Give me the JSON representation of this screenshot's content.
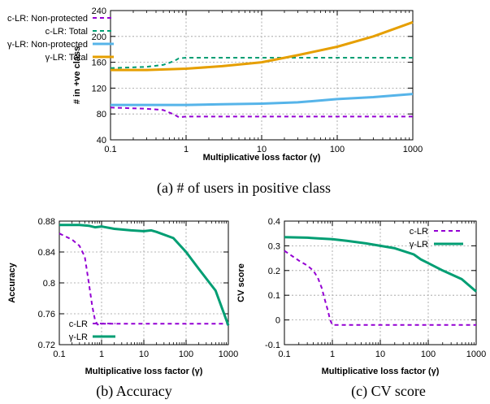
{
  "colors": {
    "purple": "#9400d3",
    "green": "#009e73",
    "blue": "#56b4e9",
    "orange": "#e69f00",
    "grid": "#9a9a9a"
  },
  "chart_data": [
    {
      "type": "line",
      "caption": "(a) # of users in positive class",
      "xlabel": "Multiplicative loss factor (γ)",
      "ylabel": "# in +ve class",
      "xscale": "log",
      "xlim": [
        0.1,
        1000
      ],
      "ylim": [
        40,
        240
      ],
      "xticks": [
        0.1,
        1,
        10,
        100,
        1000
      ],
      "xtick_labels": [
        "0.1",
        "1",
        "10",
        "100",
        "1000"
      ],
      "yticks": [
        40,
        80,
        120,
        160,
        200,
        240
      ],
      "ytick_labels": [
        "40",
        "80",
        "120",
        "160",
        "200",
        "240"
      ],
      "grid": true,
      "legend_position": "top-left",
      "series": [
        {
          "name": "c-LR: Non-protected",
          "color": "purple",
          "dash": "dashed",
          "x": [
            0.1,
            0.3,
            0.5,
            0.7,
            0.8,
            1,
            10,
            100,
            1000
          ],
          "y": [
            90,
            88,
            86,
            79,
            75,
            76,
            76,
            76,
            76
          ]
        },
        {
          "name": "c-LR: Total",
          "color": "green",
          "dash": "dashed",
          "x": [
            0.1,
            0.3,
            0.5,
            0.7,
            0.8,
            1,
            10,
            100,
            1000
          ],
          "y": [
            151,
            153,
            156,
            162,
            166,
            167,
            167,
            167,
            167
          ]
        },
        {
          "name": "γ-LR: Non-protected",
          "color": "blue",
          "dash": "solid",
          "x": [
            0.1,
            1,
            3,
            10,
            30,
            100,
            300,
            1000
          ],
          "y": [
            94,
            94,
            95,
            96,
            98,
            103,
            106,
            111
          ]
        },
        {
          "name": "γ-LR: Total",
          "color": "orange",
          "dash": "solid",
          "x": [
            0.1,
            0.3,
            1,
            3,
            10,
            30,
            100,
            300,
            1000
          ],
          "y": [
            148,
            148,
            150,
            154,
            160,
            171,
            184,
            200,
            222
          ]
        }
      ]
    },
    {
      "type": "line",
      "caption": "(b) Accuracy",
      "xlabel": "Multiplicative loss factor (γ)",
      "ylabel": "Accuracy",
      "xscale": "log",
      "xlim": [
        0.1,
        1000
      ],
      "ylim": [
        0.72,
        0.88
      ],
      "xticks": [
        0.1,
        1,
        10,
        100,
        1000
      ],
      "xtick_labels": [
        "0.1",
        "1",
        "10",
        "100",
        "1000"
      ],
      "yticks": [
        0.72,
        0.76,
        0.8,
        0.84,
        0.88
      ],
      "ytick_labels": [
        "0.72",
        "0.76",
        "0.8",
        "0.84",
        "0.88"
      ],
      "grid": true,
      "legend_position": "bottom-left",
      "series": [
        {
          "name": "c-LR",
          "color": "purple",
          "dash": "dashed",
          "x": [
            0.1,
            0.2,
            0.3,
            0.4,
            0.5,
            0.6,
            0.7,
            0.8,
            1,
            10,
            100,
            1000
          ],
          "y": [
            0.864,
            0.856,
            0.848,
            0.834,
            0.8,
            0.77,
            0.752,
            0.746,
            0.747,
            0.747,
            0.747,
            0.747
          ]
        },
        {
          "name": "γ-LR",
          "color": "green",
          "dash": "solid",
          "x": [
            0.1,
            0.3,
            0.5,
            0.7,
            1,
            2,
            5,
            10,
            15,
            20,
            50,
            100,
            200,
            500,
            1000
          ],
          "y": [
            0.875,
            0.875,
            0.874,
            0.872,
            0.873,
            0.87,
            0.868,
            0.867,
            0.868,
            0.866,
            0.858,
            0.84,
            0.818,
            0.79,
            0.745
          ]
        }
      ]
    },
    {
      "type": "line",
      "caption": "(c) CV score",
      "xlabel": "Multiplicative loss factor (γ)",
      "ylabel": "CV score",
      "xscale": "log",
      "xlim": [
        0.1,
        1000
      ],
      "ylim": [
        -0.1,
        0.4
      ],
      "xticks": [
        0.1,
        1,
        10,
        100,
        1000
      ],
      "xtick_labels": [
        "0.1",
        "1",
        "10",
        "100",
        "1000"
      ],
      "yticks": [
        -0.1,
        0,
        0.1,
        0.2,
        0.3,
        0.4
      ],
      "ytick_labels": [
        "-0.1",
        "0",
        "0.1",
        "0.2",
        "0.3",
        "0.4"
      ],
      "grid": true,
      "legend_position": "top-right",
      "series": [
        {
          "name": "c-LR",
          "color": "purple",
          "dash": "dashed",
          "x": [
            0.1,
            0.2,
            0.3,
            0.4,
            0.5,
            0.6,
            0.7,
            0.8,
            0.9,
            1,
            10,
            100,
            1000
          ],
          "y": [
            0.28,
            0.24,
            0.22,
            0.2,
            0.17,
            0.13,
            0.08,
            0.04,
            0.0,
            -0.02,
            -0.02,
            -0.02,
            -0.02
          ]
        },
        {
          "name": "γ-LR",
          "color": "green",
          "dash": "solid",
          "x": [
            0.1,
            0.3,
            0.5,
            1,
            2,
            5,
            10,
            20,
            50,
            70,
            100,
            200,
            500,
            1000
          ],
          "y": [
            0.335,
            0.333,
            0.33,
            0.327,
            0.32,
            0.31,
            0.3,
            0.29,
            0.265,
            0.245,
            0.23,
            0.2,
            0.165,
            0.115
          ]
        }
      ]
    }
  ]
}
